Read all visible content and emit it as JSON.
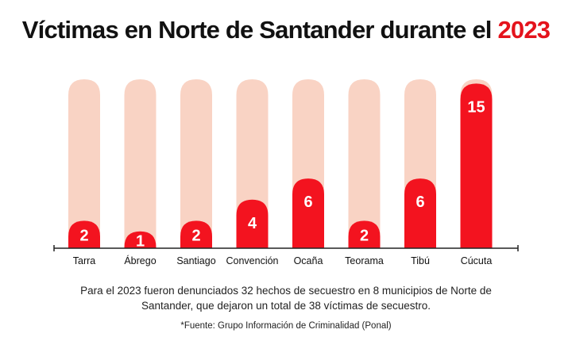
{
  "title_main": "Víctimas en Norte de Santander durante el",
  "title_year": "2023",
  "colors": {
    "bar": "#f3131f",
    "bar_background": "#f9d3c4",
    "accent_text": "#e4131c",
    "axis": "#222222"
  },
  "chart_data": {
    "type": "bar",
    "title": "Víctimas en Norte de Santander durante el 2023",
    "categories": [
      "Tarra",
      "Ábrego",
      "Santiago",
      "Convención",
      "Ocaña",
      "Teorama",
      "Tibú",
      "Cúcuta"
    ],
    "values": [
      2,
      1,
      2,
      4,
      6,
      2,
      6,
      15
    ],
    "xlabel": "",
    "ylabel": "",
    "ylim": [
      0,
      16
    ],
    "data_labels": true,
    "grid": false,
    "legend": "none"
  },
  "note": "Para el 2023 fueron denunciados 32 hechos de secuestro en 8 municipios de Norte de Santander, que dejaron un total de 38 víctimas de secuestro.",
  "source": "*Fuente: Grupo Información de Criminalidad (Ponal)"
}
